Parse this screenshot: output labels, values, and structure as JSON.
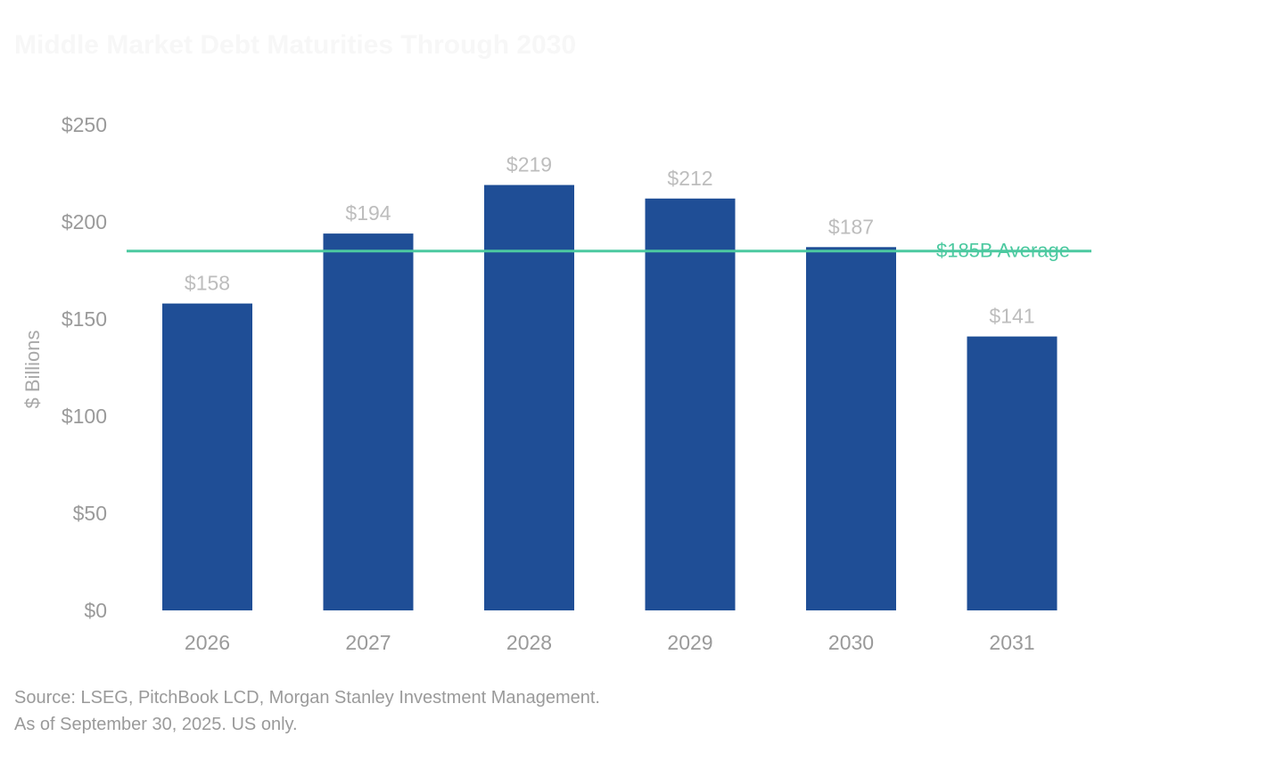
{
  "title": "Middle Market Debt Maturities Through 2030",
  "chart_data": {
    "type": "bar",
    "title": "Middle Market Debt Maturities Through 2030",
    "categories": [
      "2026",
      "2027",
      "2028",
      "2029",
      "2030",
      "2031"
    ],
    "values": [
      158,
      194,
      219,
      212,
      187,
      141
    ],
    "data_labels": [
      "$158",
      "$194",
      "$219",
      "$212",
      "$187",
      "$141"
    ],
    "ylabel": "$ Billions",
    "xlabel": "",
    "ylim": [
      0,
      250
    ],
    "yticks": [
      0,
      50,
      100,
      150,
      200,
      250
    ],
    "ytick_labels": [
      "$0",
      "$50",
      "$100",
      "$150",
      "$200",
      "$250"
    ],
    "grid": false,
    "reference_line": {
      "value": 185,
      "label": "$185B Average"
    },
    "colors": {
      "bar": "#1f4e96",
      "reference_line": "#4cc9a0"
    }
  },
  "footer": {
    "source": "Source: LSEG, PitchBook LCD, Morgan Stanley Investment Management.",
    "note": "As of September 30, 2025. US only."
  }
}
